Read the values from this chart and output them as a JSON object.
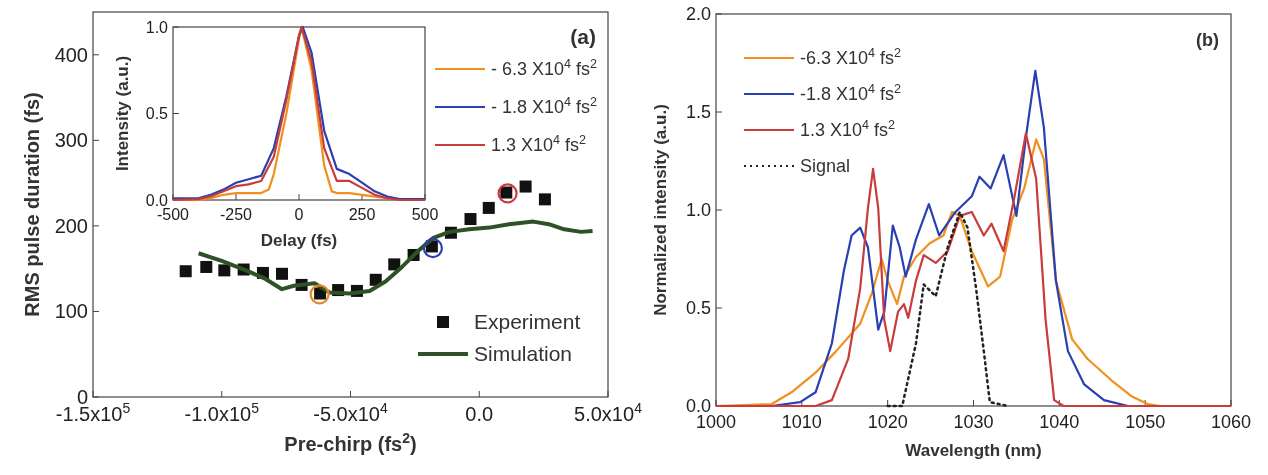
{
  "chart_data": [
    {
      "type": "scatter",
      "xlabel": "Pre-chirp (fs$^{2}$)",
      "ylabel": "RMS pulse duration (fs)",
      "annotations": [
        "(a)"
      ],
      "xlim": [
        -150000,
        50000
      ],
      "ylim": [
        0,
        450
      ],
      "xticks": [
        {
          "value": -150000,
          "label": "-1.5x10$^{5}$"
        },
        {
          "value": -100000,
          "label": "-1.0x10$^{5}$"
        },
        {
          "value": -50000,
          "label": "-5.0x10$^{4}$"
        },
        {
          "value": 0,
          "label": "0.0"
        },
        {
          "value": 50000,
          "label": "5.0x10$^{4}$"
        }
      ],
      "yticks": [
        0,
        100,
        200,
        300,
        400
      ],
      "legend": "bottom right",
      "series": [
        {
          "name": "Experiment",
          "color": "#111111",
          "marker": "square",
          "x": [
            -114000,
            -106000,
            -99000,
            -91500,
            -84000,
            -76600,
            -69000,
            -61800,
            -54800,
            -47500,
            -40200,
            -33000,
            -25500,
            -18400,
            -11000,
            -3400,
            3700,
            10500,
            18000,
            25500
          ],
          "values": [
            147,
            152,
            148,
            149,
            145,
            144,
            131,
            121,
            125,
            124,
            137,
            155,
            166,
            176,
            192,
            208,
            221,
            239,
            246,
            231
          ]
        },
        {
          "name": "Simulation",
          "type": "line",
          "color": "#2e5226",
          "line_style": "solid",
          "x": [
            -109000,
            -100000,
            -90600,
            -83000,
            -76600,
            -72000,
            -64000,
            -58000,
            -50300,
            -42600,
            -36400,
            -30000,
            -24000,
            -17800,
            -11600,
            -3900,
            3900,
            11600,
            21000,
            27000,
            33000,
            39500,
            44000
          ],
          "values": [
            168,
            159,
            148,
            138,
            126,
            130,
            133,
            122,
            121,
            124,
            135,
            152,
            170,
            186,
            193,
            196,
            198,
            202,
            205,
            202,
            196,
            193,
            194
          ]
        },
        {
          "marker": "circle",
          "color": "#e8872a",
          "x": [
            -62000
          ],
          "values": [
            120
          ]
        },
        {
          "marker": "circle",
          "color": "#2a3fb0",
          "x": [
            -18000
          ],
          "values": [
            174
          ]
        },
        {
          "marker": "circle",
          "color": "#d03a3a",
          "x": [
            11000
          ],
          "values": [
            238
          ]
        }
      ]
    },
    {
      "type": "line",
      "xlabel": "Delay (fs)",
      "ylabel": "Intensity (a.u.)",
      "xlim": [
        -500,
        500
      ],
      "ylim": [
        0,
        1
      ],
      "xticks": [
        -500,
        -250,
        0,
        250,
        500
      ],
      "yticks": [
        {
          "value": 0,
          "label": "0.0"
        },
        {
          "value": 0.5,
          "label": "0.5"
        },
        {
          "value": 1,
          "label": "1.0"
        }
      ],
      "legend": "right",
      "line_style": "solid",
      "series": [
        {
          "name": "- 6.3 X10$^{4}$ fs$^{2}$",
          "color": "#f0901e",
          "x": [
            -500,
            -400,
            -350,
            -300,
            -250,
            -200,
            -150,
            -120,
            -100,
            -50,
            0,
            10,
            50,
            100,
            130,
            150,
            200,
            250,
            300,
            350,
            400,
            500
          ],
          "values": [
            0,
            0,
            0.01,
            0.03,
            0.04,
            0.04,
            0.04,
            0.06,
            0.15,
            0.5,
            0.93,
            1.0,
            0.75,
            0.2,
            0.05,
            0.04,
            0.04,
            0.03,
            0.02,
            0.01,
            0,
            0
          ]
        },
        {
          "name": "- 1.8 X10$^{4}$ fs$^{2}$",
          "color": "#2a3fb0",
          "x": [
            -500,
            -400,
            -350,
            -300,
            -250,
            -200,
            -150,
            -100,
            -50,
            0,
            15,
            50,
            100,
            150,
            200,
            250,
            300,
            350,
            400,
            500
          ],
          "values": [
            0.01,
            0.01,
            0.03,
            0.06,
            0.1,
            0.12,
            0.14,
            0.3,
            0.6,
            0.95,
            1.0,
            0.85,
            0.4,
            0.18,
            0.15,
            0.1,
            0.05,
            0.02,
            0.005,
            0.005
          ]
        },
        {
          "name": " 1.3 X10$^{4}$ fs$^{2}$",
          "color": "#c83c3c",
          "x": [
            -500,
            -400,
            -350,
            -300,
            -250,
            -200,
            -150,
            -100,
            -50,
            0,
            10,
            50,
            100,
            150,
            200,
            250,
            300,
            350,
            400,
            500
          ],
          "values": [
            0,
            0.005,
            0.02,
            0.05,
            0.08,
            0.09,
            0.11,
            0.25,
            0.58,
            0.95,
            1.0,
            0.8,
            0.3,
            0.11,
            0.11,
            0.07,
            0.03,
            0.01,
            0,
            0
          ]
        }
      ]
    },
    {
      "type": "line",
      "xlabel": "Wavelength (nm)",
      "ylabel": "Normalized intensity (a.u.)",
      "annotations": [
        "(b)"
      ],
      "xlim": [
        1000,
        1060
      ],
      "ylim": [
        0,
        2
      ],
      "xticks": [
        1000,
        1010,
        1020,
        1030,
        1040,
        1050,
        1060
      ],
      "yticks": [
        {
          "value": 0,
          "label": "0.0"
        },
        {
          "value": 0.5,
          "label": "0.5"
        },
        {
          "value": 1,
          "label": "1.0"
        },
        {
          "value": 1.5,
          "label": "1.5"
        },
        {
          "value": 2,
          "label": "2.0"
        }
      ],
      "legend": "top left",
      "series": [
        {
          "name": "-6.3 X10$^{4}$ fs$^{2}$",
          "color": "#f0901e",
          "line_style": "solid",
          "x": [
            1000,
            1006.5,
            1008.8,
            1011.6,
            1014,
            1016.8,
            1018.2,
            1019.3,
            1020,
            1021.1,
            1021.9,
            1023.3,
            1024.9,
            1026.5,
            1027.5,
            1028.4,
            1029.8,
            1031.7,
            1033.1,
            1034.5,
            1035.9,
            1037.3,
            1038.2,
            1039.6,
            1041.5,
            1043.3,
            1046.1,
            1048.4,
            1050.3,
            1051.7,
            1060
          ],
          "values": [
            0,
            0.01,
            0.07,
            0.17,
            0.28,
            0.42,
            0.58,
            0.75,
            0.64,
            0.52,
            0.66,
            0.76,
            0.83,
            0.87,
            0.99,
            0.97,
            0.79,
            0.61,
            0.66,
            0.95,
            1.11,
            1.36,
            1.26,
            0.64,
            0.34,
            0.24,
            0.13,
            0.05,
            0.01,
            0,
            0
          ]
        },
        {
          "name": "-1.8 X10$^{4}$ fs$^{2}$",
          "color": "#2a3fb0",
          "line_style": "solid",
          "x": [
            1000,
            1006.5,
            1009.8,
            1011.6,
            1013.5,
            1014.9,
            1015.8,
            1016.8,
            1017.7,
            1018.9,
            1019.6,
            1020.6,
            1021.4,
            1022.1,
            1023.3,
            1024.8,
            1026,
            1027.9,
            1029.8,
            1030.7,
            1032,
            1033.5,
            1035,
            1036.1,
            1037.2,
            1038.2,
            1039.6,
            1041,
            1042.9,
            1045.2,
            1048,
            1060
          ],
          "values": [
            0,
            0,
            0.02,
            0.07,
            0.32,
            0.69,
            0.87,
            0.91,
            0.81,
            0.39,
            0.48,
            0.92,
            0.81,
            0.66,
            0.85,
            1.03,
            0.87,
            0.99,
            1.07,
            1.17,
            1.11,
            1.28,
            0.97,
            1.37,
            1.71,
            1.42,
            0.64,
            0.28,
            0.11,
            0.03,
            0,
            0
          ]
        },
        {
          "name": "1.3 X10$^{4}$ fs$^{2}$",
          "color": "#c83c3c",
          "line_style": "solid",
          "x": [
            1000,
            1011.6,
            1013.5,
            1015.4,
            1016.8,
            1017.7,
            1018.3,
            1018.9,
            1019.6,
            1020.3,
            1021.2,
            1021.9,
            1022.4,
            1023.3,
            1024.2,
            1025.6,
            1027,
            1028.4,
            1029.8,
            1031.2,
            1032.1,
            1033.5,
            1034.7,
            1036.1,
            1037.3,
            1038.4,
            1039.4,
            1040.5,
            1060
          ],
          "values": [
            0,
            0,
            0.03,
            0.24,
            0.6,
            1.01,
            1.21,
            1.01,
            0.44,
            0.28,
            0.48,
            0.52,
            0.45,
            0.64,
            0.77,
            0.73,
            0.79,
            0.97,
            0.99,
            0.87,
            0.93,
            0.79,
            1.05,
            1.39,
            1.16,
            0.44,
            0.03,
            0,
            0
          ]
        },
        {
          "name": "Signal",
          "color": "#222222",
          "line_style": "dotted",
          "x": [
            1020,
            1021.7,
            1023.3,
            1024.2,
            1025.6,
            1027,
            1028.4,
            1029.3,
            1030.3,
            1031.2,
            1031.9,
            1034
          ],
          "values": [
            0,
            0,
            0.32,
            0.62,
            0.56,
            0.81,
            0.99,
            0.91,
            0.6,
            0.28,
            0.02,
            0
          ]
        }
      ]
    }
  ]
}
